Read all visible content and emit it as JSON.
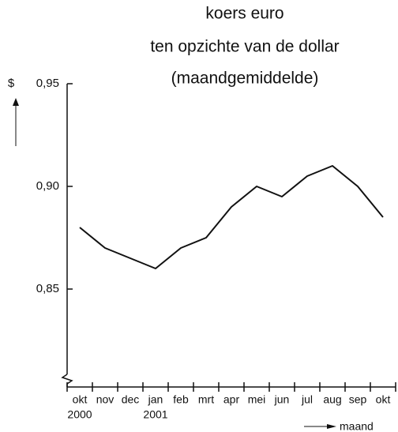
{
  "chart_data": {
    "type": "line",
    "title": [
      "koers euro",
      "ten opzichte van de dollar",
      "(maandgemiddelde)"
    ],
    "y_label": "$",
    "x_label": "maand",
    "categories": [
      "okt",
      "nov",
      "dec",
      "jan",
      "feb",
      "mrt",
      "apr",
      "mei",
      "jun",
      "jul",
      "aug",
      "sep",
      "okt"
    ],
    "year_labels": [
      "2000",
      null,
      null,
      "2001",
      null,
      null,
      null,
      null,
      null,
      null,
      null,
      null,
      null
    ],
    "series": [
      {
        "name": "koers euro",
        "color": "#111111",
        "values": [
          0.88,
          0.87,
          0.865,
          0.86,
          0.87,
          0.875,
          0.89,
          0.9,
          0.895,
          0.905,
          0.91,
          0.9,
          0.885
        ]
      }
    ],
    "ylim": [
      0.8,
      0.95
    ],
    "yticks": [
      {
        "value": 0.85,
        "label": "0,85"
      },
      {
        "value": 0.9,
        "label": "0,90"
      },
      {
        "value": 0.95,
        "label": "0,95"
      }
    ],
    "axis_break": true
  }
}
